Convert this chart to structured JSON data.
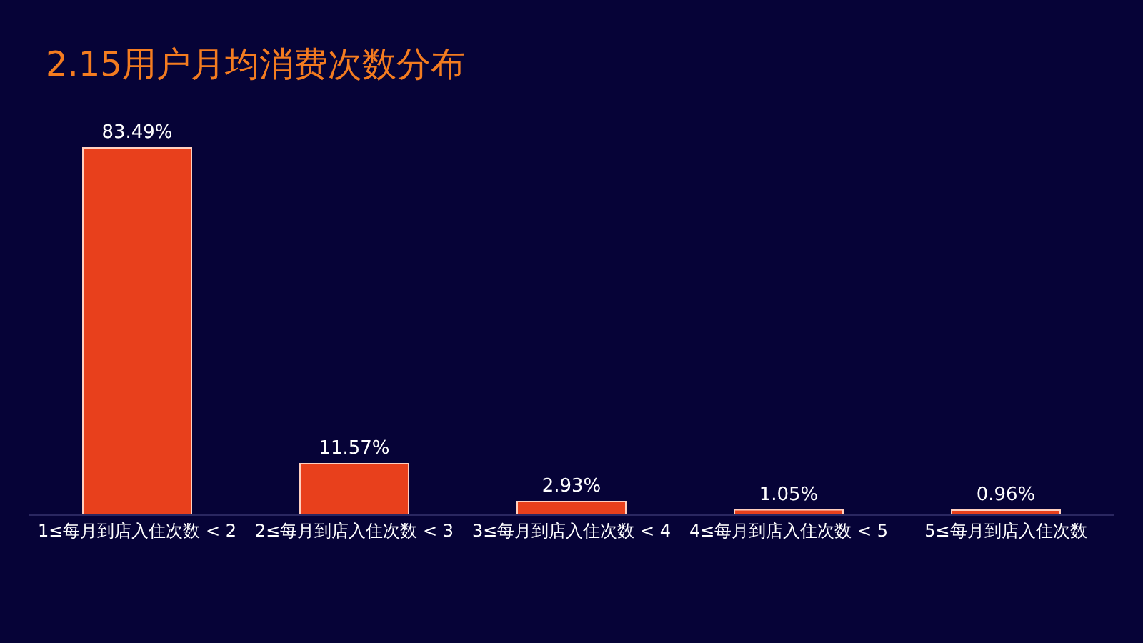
{
  "chart_data": {
    "type": "bar",
    "title": "2.15用户月均消费次数分布",
    "categories": [
      "1≤每月到店入住次数 < 2",
      "2≤每月到店入住次数 < 3",
      "3≤每月到店入住次数 < 4",
      "4≤每月到店入住次数 < 5",
      "5≤每月到店入住次数"
    ],
    "values": [
      83.49,
      11.57,
      2.93,
      1.05,
      0.96
    ],
    "value_labels": [
      "83.49%",
      "11.57%",
      "2.93%",
      "1.05%",
      "0.96%"
    ],
    "color": "#e8401c",
    "grid": false,
    "legend": false
  }
}
